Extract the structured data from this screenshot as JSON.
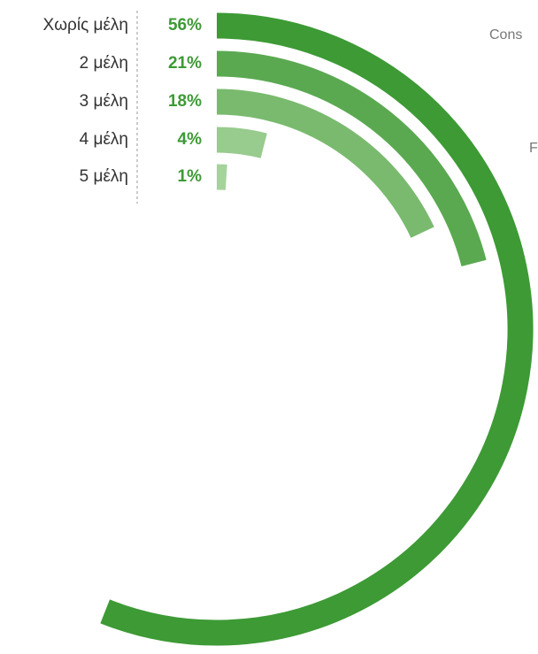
{
  "chart_data": {
    "type": "radial_bar",
    "categories": [
      "Χωρίς μέλη",
      "2 μέλη",
      "3 μέλη",
      "4 μέλη",
      "5 μέλη"
    ],
    "values": [
      56,
      21,
      18,
      4,
      1
    ],
    "value_labels": [
      "56%",
      "21%",
      "18%",
      "4%",
      "1%"
    ],
    "colors": [
      "#3d9a35",
      "#5aa951",
      "#7aba6f",
      "#98cb8e",
      "#a6d39c"
    ],
    "annotations": [
      "Cons",
      "F"
    ]
  }
}
